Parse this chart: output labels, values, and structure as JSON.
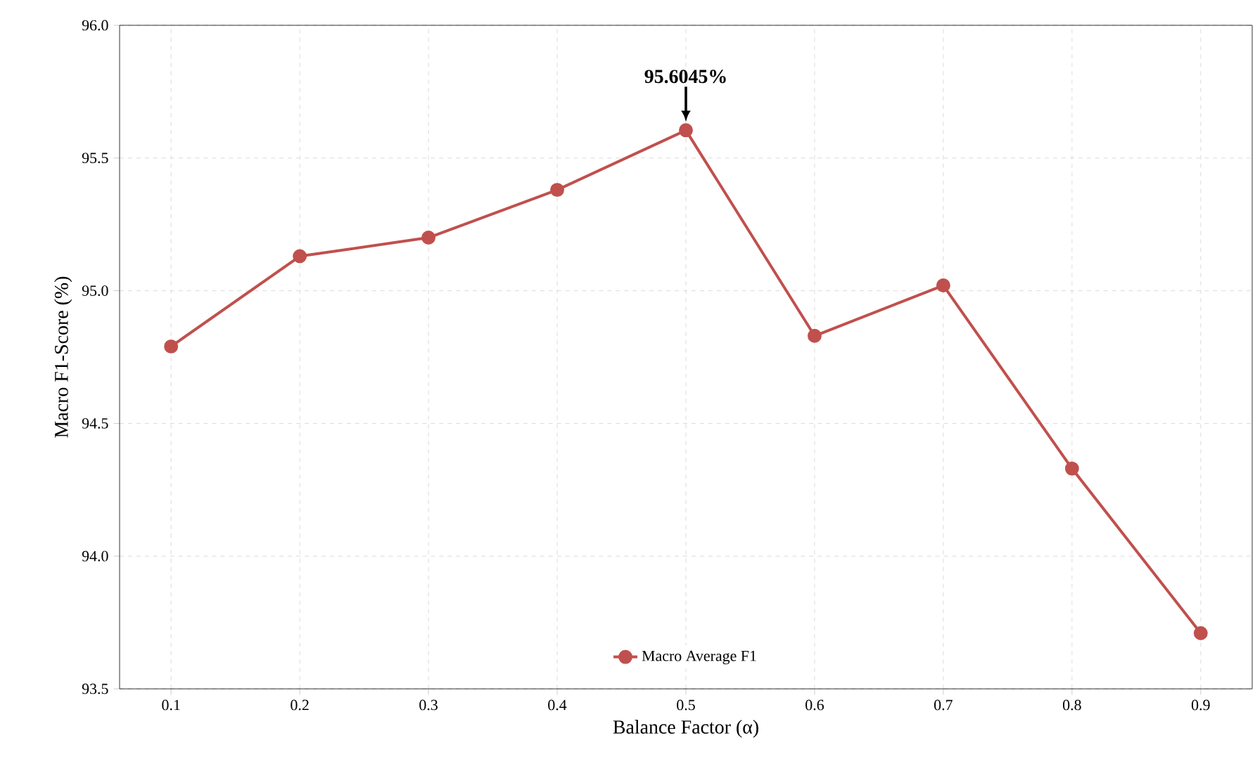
{
  "chart_data": {
    "type": "line",
    "xlabel": "Balance Factor (α)",
    "ylabel": "Macro F1-Score (%)",
    "x": [
      0.1,
      0.2,
      0.3,
      0.4,
      0.5,
      0.6,
      0.7,
      0.8,
      0.9
    ],
    "series": [
      {
        "name": "Macro Average F1",
        "color": "#c0504d",
        "values": [
          94.79,
          95.13,
          95.2,
          95.38,
          95.6045,
          94.83,
          95.02,
          94.33,
          93.71
        ]
      }
    ],
    "xlim": [
      0.06,
      0.94
    ],
    "ylim": [
      93.5,
      96.0
    ],
    "xticks": [
      0.1,
      0.2,
      0.3,
      0.4,
      0.5,
      0.6,
      0.7,
      0.8,
      0.9
    ],
    "yticks": [
      {
        "value": 93.5,
        "label": "93.5"
      },
      {
        "value": 94.0,
        "label": "94.0"
      },
      {
        "value": 94.5,
        "label": "94.5"
      },
      {
        "value": 95.0,
        "label": "95.0"
      },
      {
        "value": 95.5,
        "label": "95.5"
      },
      {
        "value": 96.0,
        "label": "96.0"
      }
    ],
    "annotations": [
      {
        "text": "**95.6045%**",
        "x": 0.5,
        "y": 95.6045
      }
    ],
    "grid": true,
    "legend": "bottom",
    "marker": "circle",
    "line_style": "solid"
  }
}
